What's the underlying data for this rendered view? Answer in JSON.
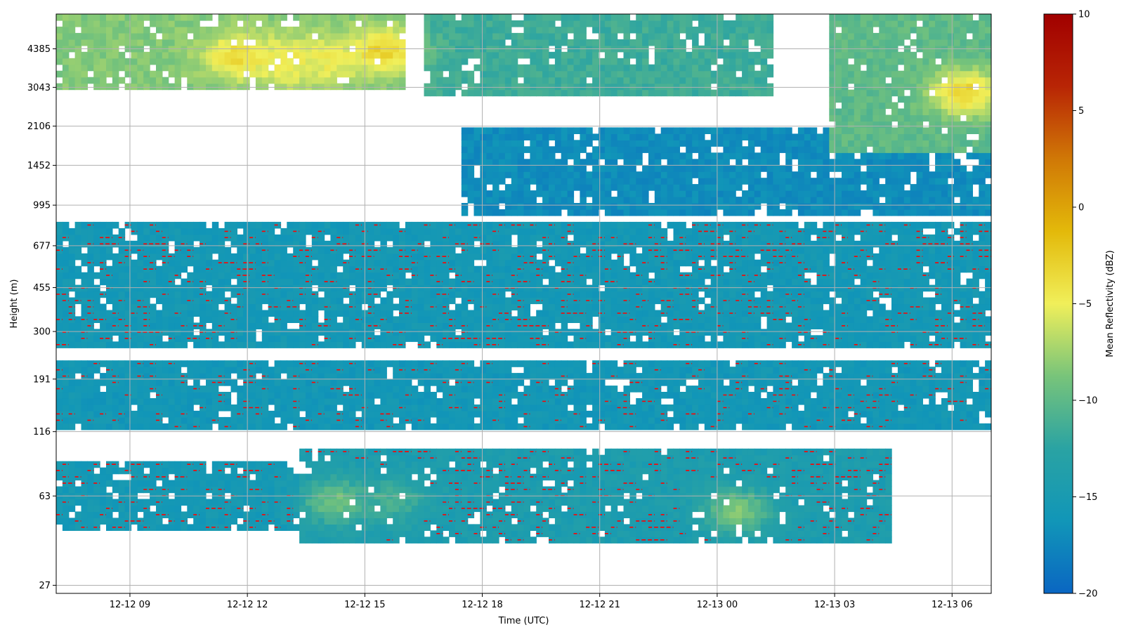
{
  "chart_data": {
    "type": "heatmap",
    "title": "",
    "xlabel": "Time (UTC)",
    "ylabel": "Height (m)",
    "x_range": [
      "2025-12-12 07:07",
      "2025-12-13 07:00"
    ],
    "x_ticks": [
      {
        "time": "2025-12-12 09:00",
        "label": "12-12 09"
      },
      {
        "time": "2025-12-12 12:00",
        "label": "12-12 12"
      },
      {
        "time": "2025-12-12 15:00",
        "label": "12-12 15"
      },
      {
        "time": "2025-12-12 18:00",
        "label": "12-12 18"
      },
      {
        "time": "2025-12-12 21:00",
        "label": "12-12 21"
      },
      {
        "time": "2025-12-13 00:00",
        "label": "12-13 00"
      },
      {
        "time": "2025-12-13 03:00",
        "label": "12-13 03"
      },
      {
        "time": "2025-12-13 06:00",
        "label": "12-13 06"
      }
    ],
    "y_scale": "log",
    "y_ticks": [
      27,
      63,
      116,
      191,
      300,
      455,
      677,
      995,
      1452,
      2106,
      3043,
      4385
    ],
    "y_range": [
      25,
      6100
    ],
    "colorbar": {
      "label": "Mean Reflectivity (dBZ)",
      "range": [
        -20,
        10
      ],
      "ticks": [
        -20,
        -15,
        -10,
        -5,
        0,
        5,
        10
      ],
      "colors": [
        "#0a66c2",
        "#1196b8",
        "#2aa3a3",
        "#78c47a",
        "#f0ef5a",
        "#e3b90a",
        "#d07806",
        "#b82505",
        "#a10000"
      ]
    },
    "contour": {
      "level_dbz": -15,
      "color": "#ff0000",
      "style": "dashed"
    },
    "grid": true,
    "echo_layers": [
      {
        "t_start": "2025-12-12 07:07",
        "t_end": "2025-12-13 07:00",
        "bottom_m": 255,
        "top_m": 850,
        "mean_dbz": -15.6
      },
      {
        "t_start": "2025-12-12 07:07",
        "t_end": "2025-12-13 07:00",
        "bottom_m": 120,
        "top_m": 230,
        "mean_dbz": -15.8
      },
      {
        "t_start": "2025-12-12 13:20",
        "t_end": "2025-12-13 04:30",
        "bottom_m": 40,
        "top_m": 100,
        "mean_dbz": -14.5
      },
      {
        "t_start": "2025-12-12 07:07",
        "t_end": "2025-12-12 13:20",
        "bottom_m": 45,
        "top_m": 90,
        "mean_dbz": -15.5
      },
      {
        "t_start": "2025-12-12 17:30",
        "t_end": "2025-12-13 07:00",
        "bottom_m": 900,
        "top_m": 2100,
        "mean_dbz": -17.0
      },
      {
        "t_start": "2025-12-12 07:07",
        "t_end": "2025-12-12 16:00",
        "bottom_m": 3000,
        "top_m": 6000,
        "mean_dbz": -8.5
      },
      {
        "t_start": "2025-12-12 16:30",
        "t_end": "2025-12-13 01:30",
        "bottom_m": 2800,
        "top_m": 6000,
        "mean_dbz": -11.5
      },
      {
        "t_start": "2025-12-13 02:50",
        "t_end": "2025-12-13 07:00",
        "bottom_m": 1600,
        "top_m": 6000,
        "mean_dbz": -10.0
      }
    ],
    "reflectivity_maxima": [
      {
        "time": "2025-12-12 11:45",
        "height_m": 4100,
        "dbz": -3.5
      },
      {
        "time": "2025-12-12 13:00",
        "height_m": 3900,
        "dbz": -4.5
      },
      {
        "time": "2025-12-12 14:00",
        "height_m": 3950,
        "dbz": -5.0
      },
      {
        "time": "2025-12-12 15:30",
        "height_m": 4300,
        "dbz": -3.0
      },
      {
        "time": "2025-12-13 06:20",
        "height_m": 2900,
        "dbz": -3.0
      },
      {
        "time": "2025-12-12 14:15",
        "height_m": 60,
        "dbz": -9.0
      },
      {
        "time": "2025-12-13 00:30",
        "height_m": 55,
        "dbz": -8.5
      },
      {
        "time": "2025-12-12 15:45",
        "height_m": 60,
        "dbz": -11.0
      }
    ]
  }
}
